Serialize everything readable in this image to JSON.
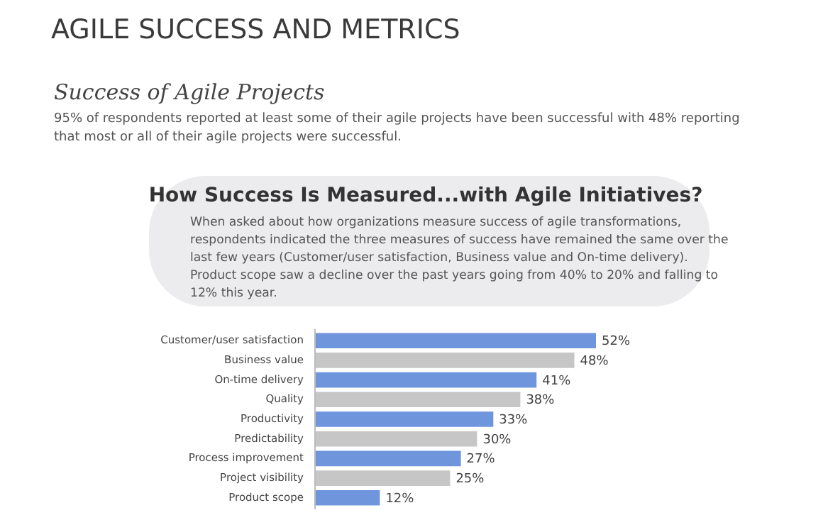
{
  "chart_data": {
    "type": "bar",
    "orientation": "horizontal",
    "title": "AGILE SUCCESS AND METRICS",
    "subtitle": "How Success Is Measured...with Agile Initiatives?",
    "annotations": [
      "Success of Agile Projects",
      "95% of respondents reported at least some of their agile projects have been successful with  48% reporting that most or all of their agile projects were successful.",
      "When asked about how organizations measure success of agile transformations, respondents indicated the three measures of success have remained the same over the last few years (Customer/user satisfaction, Business value and On-time delivery). Product scope saw a decline over the past years going from 40% to 20% and falling to 12% this year."
    ],
    "categories": [
      "Customer/user satisfaction",
      "Business value",
      "On-time delivery",
      "Quality",
      "Productivity",
      "Predictability",
      "Process improvement",
      "Project visibility",
      "Product scope"
    ],
    "values": [
      52,
      48,
      41,
      38,
      33,
      30,
      27,
      25,
      12
    ],
    "colors": [
      "#6f95dc",
      "#c6c6c6",
      "#6f95dc",
      "#c6c6c6",
      "#6f95dc",
      "#c6c6c6",
      "#6f95dc",
      "#c6c6c6",
      "#6f95dc"
    ],
    "value_labels": [
      "52%",
      "48%",
      "41%",
      "38%",
      "33%",
      "30%",
      "27%",
      "25%",
      "12%"
    ]
  }
}
